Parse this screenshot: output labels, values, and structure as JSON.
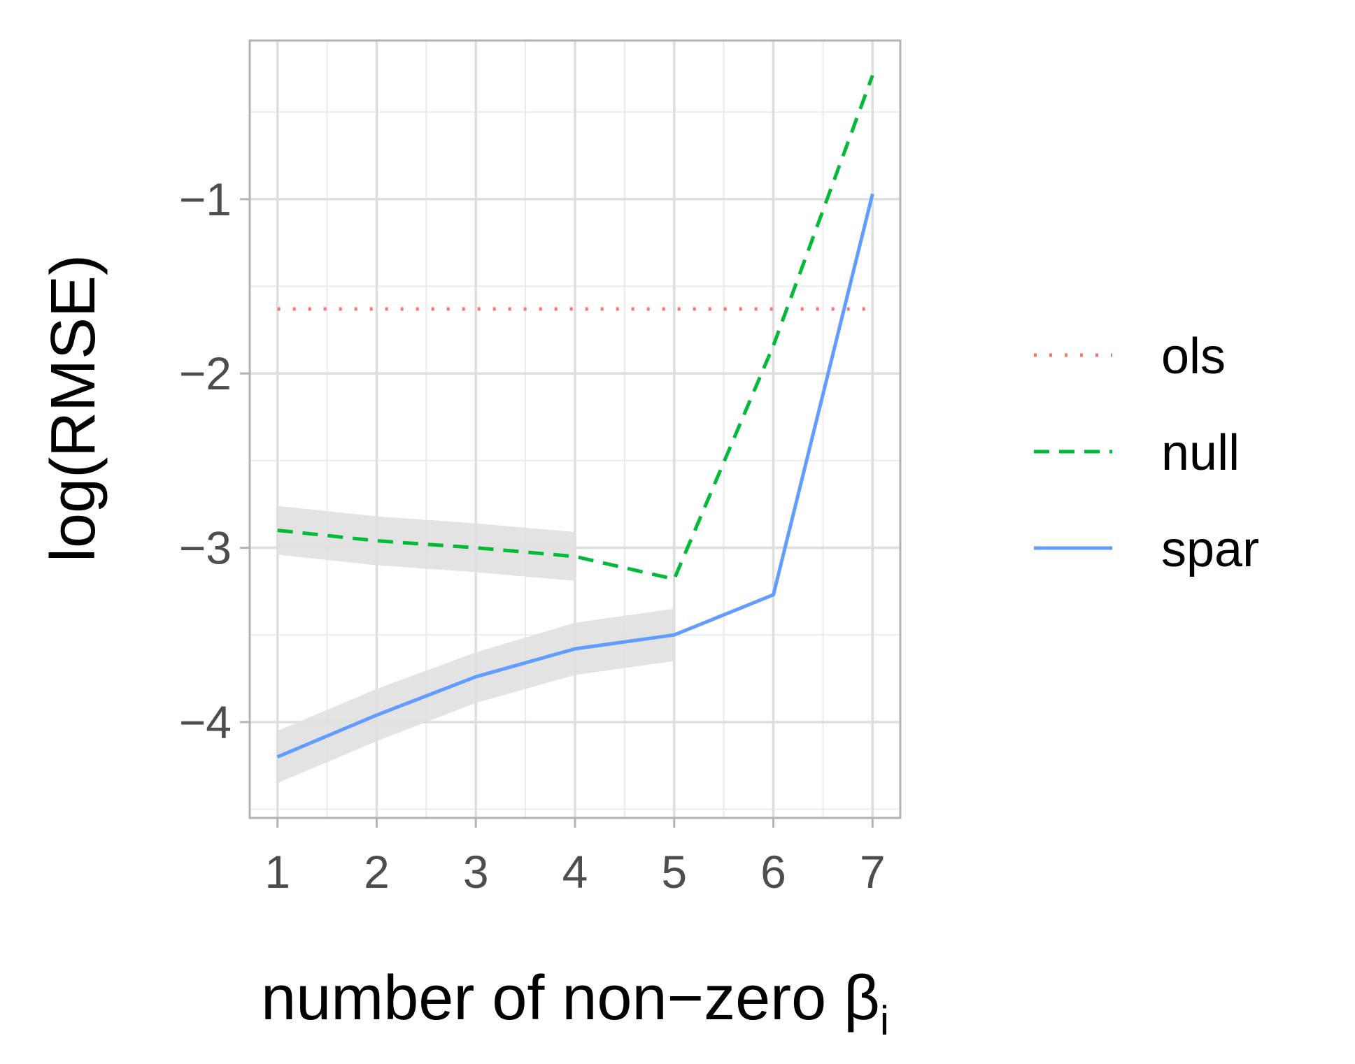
{
  "chart_data": {
    "type": "line",
    "xlabel": "number of non−zero β",
    "xlabel_subscript": "i",
    "ylabel": "log(RMSE)",
    "x": [
      1,
      2,
      3,
      4,
      5,
      6,
      7
    ],
    "x_tick_labels": [
      "1",
      "2",
      "3",
      "4",
      "5",
      "6",
      "7"
    ],
    "y_ticks": [
      -1,
      -2,
      -3,
      -4
    ],
    "y_tick_labels": [
      "−1",
      "−2",
      "−3",
      "−4"
    ],
    "xlim": [
      0.72,
      7.28
    ],
    "ylim": [
      -4.55,
      -0.09
    ],
    "grid": true,
    "legend_position": "right",
    "series": [
      {
        "name": "ols",
        "linetype": "dotted",
        "color": "#F8766D",
        "x": [
          1,
          2,
          3,
          4,
          5,
          6,
          7
        ],
        "values": [
          -1.63,
          -1.63,
          -1.63,
          -1.63,
          -1.63,
          -1.63,
          -1.63
        ]
      },
      {
        "name": "null",
        "linetype": "dashed",
        "color": "#00BA38",
        "x": [
          1,
          2,
          3,
          4,
          5,
          6,
          7
        ],
        "values": [
          -2.9,
          -2.96,
          -3.0,
          -3.05,
          -3.18,
          -1.84,
          -0.29
        ],
        "ribbon_x": [
          1,
          2,
          3,
          4
        ],
        "ribbon_low": [
          -3.04,
          -3.1,
          -3.14,
          -3.19
        ],
        "ribbon_high": [
          -2.76,
          -2.82,
          -2.86,
          -2.91
        ]
      },
      {
        "name": "spar",
        "linetype": "solid",
        "color": "#619CFF",
        "x": [
          1,
          2,
          3,
          4,
          5,
          6,
          7
        ],
        "values": [
          -4.2,
          -3.96,
          -3.74,
          -3.58,
          -3.5,
          -3.27,
          -0.97
        ],
        "ribbon_x": [
          1,
          2,
          3,
          4,
          5
        ],
        "ribbon_low": [
          -4.35,
          -4.11,
          -3.89,
          -3.73,
          -3.65
        ],
        "ribbon_high": [
          -4.05,
          -3.81,
          -3.6,
          -3.43,
          -3.35
        ]
      }
    ]
  }
}
